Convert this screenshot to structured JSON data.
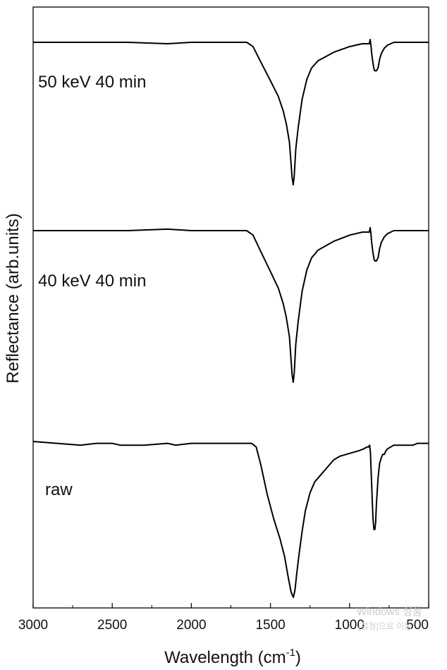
{
  "chart_data": {
    "type": "line",
    "xlabel": "Wavelength (cm",
    "xlabel_sup": "-1",
    "xlabel_end": ")",
    "ylabel": "Reflectance (arb.units)",
    "xlim": [
      3000,
      500
    ],
    "x_reversed": true,
    "xticks": [
      3000,
      2500,
      2000,
      1500,
      1000,
      500
    ],
    "y_ticks_shown": false,
    "series": [
      {
        "name": "50 keV 40 min",
        "x": [
          3000,
          2800,
          2600,
          2400,
          2150,
          2000,
          1800,
          1650,
          1610,
          1560,
          1500,
          1450,
          1420,
          1400,
          1380,
          1370,
          1363,
          1356,
          1350,
          1340,
          1325,
          1300,
          1270,
          1240,
          1200,
          1150,
          1100,
          1050,
          1000,
          960,
          920,
          900,
          880,
          875,
          870,
          865,
          860,
          855,
          850,
          845,
          840,
          830,
          820,
          810,
          800,
          790,
          780,
          770,
          760,
          740,
          720,
          700,
          680,
          650,
          600,
          550,
          500
        ],
        "y": [
          0.0,
          0.0,
          0.0,
          0.0,
          -0.01,
          0.0,
          0.0,
          0.0,
          -0.03,
          -0.14,
          -0.27,
          -0.38,
          -0.48,
          -0.57,
          -0.7,
          -0.85,
          -0.95,
          -1.0,
          -0.94,
          -0.75,
          -0.6,
          -0.4,
          -0.26,
          -0.18,
          -0.13,
          -0.1,
          -0.07,
          -0.05,
          -0.03,
          -0.02,
          -0.01,
          -0.01,
          -0.01,
          -0.01,
          0.02,
          -0.02,
          -0.08,
          -0.12,
          -0.16,
          -0.19,
          -0.2,
          -0.2,
          -0.18,
          -0.12,
          -0.08,
          -0.06,
          -0.04,
          -0.03,
          -0.02,
          -0.01,
          0.0,
          0.0,
          0.0,
          0.0,
          0.0,
          0.0,
          0.0
        ]
      },
      {
        "name": "40 keV 40 min",
        "x": [
          3000,
          2800,
          2600,
          2400,
          2150,
          2000,
          1800,
          1650,
          1610,
          1560,
          1500,
          1450,
          1420,
          1400,
          1380,
          1370,
          1363,
          1356,
          1350,
          1340,
          1325,
          1300,
          1270,
          1240,
          1200,
          1150,
          1100,
          1050,
          1000,
          960,
          920,
          900,
          880,
          875,
          870,
          865,
          860,
          855,
          850,
          845,
          840,
          830,
          820,
          810,
          800,
          790,
          780,
          770,
          760,
          740,
          720,
          700,
          680,
          650,
          600,
          550,
          500
        ],
        "y": [
          0.0,
          0.0,
          0.0,
          0.0,
          0.01,
          0.0,
          0.0,
          0.0,
          -0.03,
          -0.14,
          -0.27,
          -0.38,
          -0.48,
          -0.57,
          -0.7,
          -0.85,
          -0.95,
          -1.0,
          -0.94,
          -0.75,
          -0.6,
          -0.4,
          -0.26,
          -0.18,
          -0.13,
          -0.1,
          -0.07,
          -0.05,
          -0.03,
          -0.02,
          -0.01,
          -0.01,
          -0.01,
          -0.01,
          0.02,
          -0.02,
          -0.08,
          -0.12,
          -0.16,
          -0.19,
          -0.2,
          -0.2,
          -0.18,
          -0.12,
          -0.08,
          -0.06,
          -0.04,
          -0.03,
          -0.02,
          -0.01,
          0.0,
          0.0,
          0.0,
          0.0,
          0.0,
          0.0,
          0.0
        ]
      },
      {
        "name": "raw",
        "x": [
          3000,
          2850,
          2700,
          2600,
          2500,
          2450,
          2300,
          2150,
          2100,
          2000,
          1900,
          1800,
          1700,
          1620,
          1590,
          1560,
          1520,
          1480,
          1440,
          1410,
          1390,
          1370,
          1355,
          1345,
          1335,
          1320,
          1300,
          1280,
          1250,
          1220,
          1180,
          1140,
          1100,
          1060,
          1020,
          980,
          940,
          910,
          890,
          880,
          873,
          868,
          863,
          858,
          852,
          846,
          840,
          835,
          830,
          820,
          810,
          800,
          790,
          780,
          770,
          760,
          740,
          720,
          700,
          680,
          650,
          620,
          600,
          570,
          540,
          510,
          500
        ],
        "y": [
          0.0,
          -0.01,
          -0.02,
          -0.01,
          -0.01,
          -0.02,
          -0.02,
          -0.01,
          -0.02,
          -0.01,
          -0.01,
          -0.01,
          -0.01,
          -0.01,
          -0.03,
          -0.13,
          -0.29,
          -0.42,
          -0.53,
          -0.63,
          -0.73,
          -0.82,
          -0.85,
          -0.81,
          -0.73,
          -0.62,
          -0.49,
          -0.38,
          -0.28,
          -0.22,
          -0.18,
          -0.14,
          -0.1,
          -0.08,
          -0.07,
          -0.06,
          -0.05,
          -0.04,
          -0.03,
          -0.03,
          -0.02,
          -0.06,
          -0.17,
          -0.29,
          -0.42,
          -0.48,
          -0.48,
          -0.44,
          -0.34,
          -0.2,
          -0.12,
          -0.09,
          -0.07,
          -0.07,
          -0.05,
          -0.04,
          -0.03,
          -0.02,
          -0.02,
          -0.02,
          -0.02,
          -0.02,
          -0.02,
          -0.01,
          -0.01,
          -0.01,
          -0.01
        ]
      }
    ],
    "annotations": [
      "50 keV 40 min",
      "40 keV 40 min",
      "raw"
    ],
    "grid": false,
    "legend": "none"
  },
  "watermark": {
    "line1": "Windows 정품",
    "line2": "[설정]으로 이동"
  },
  "colors": {
    "line": "#000000",
    "axis": "#000000",
    "watermark": "#c8c8c8"
  }
}
